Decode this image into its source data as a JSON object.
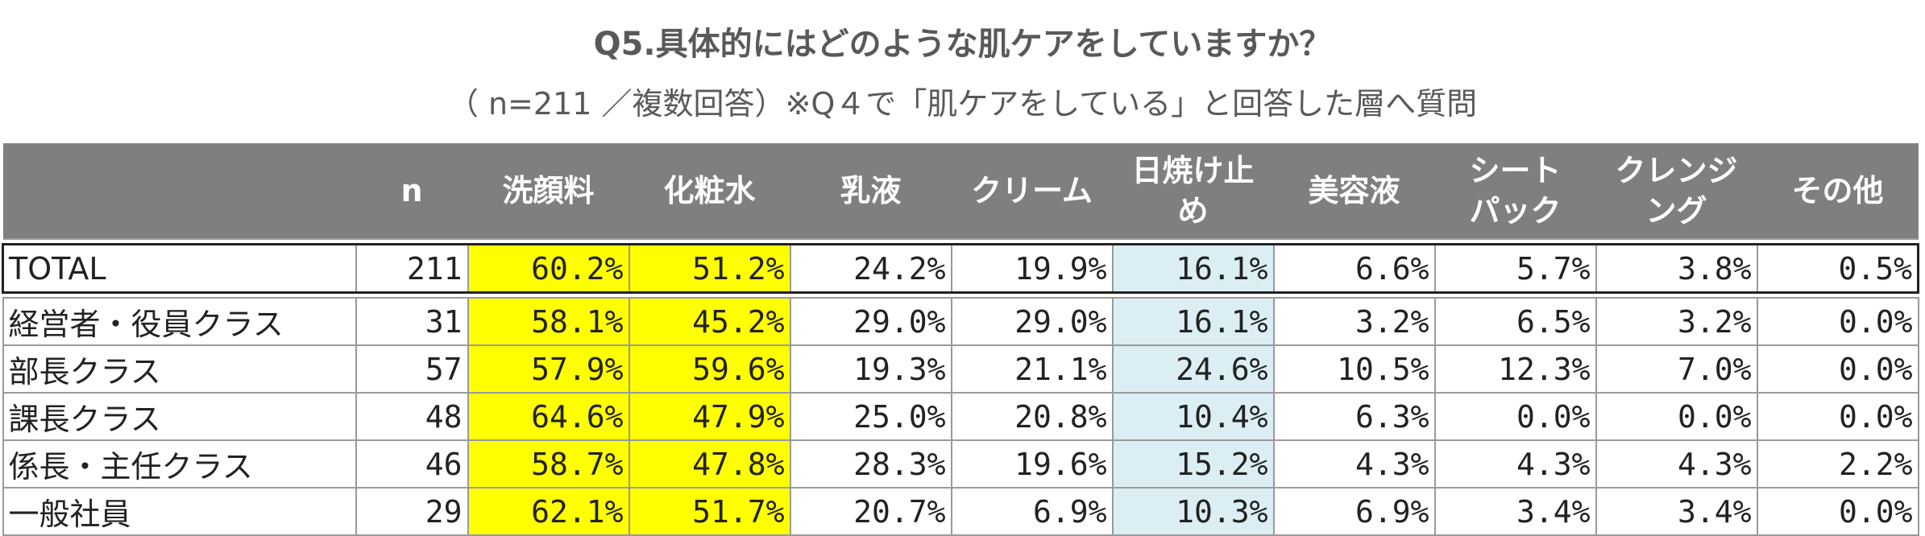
{
  "title": "Q5.具体的にはどのような肌ケアをしていますか？",
  "subtitle": "（ n=211 ／複数回答）※Q４で「肌ケアをしている」と回答した層へ質問",
  "colors": {
    "header_bg": "#7f7f7f",
    "highlight_yellow": "#ffff00",
    "highlight_blue": "#daeef3"
  },
  "chart_data": {
    "type": "table",
    "columns": [
      "n",
      "洗顔料",
      "化粧水",
      "乳液",
      "クリーム",
      "日焼け止め",
      "美容液",
      "シートパック",
      "クレンジング",
      "その他"
    ],
    "header": {
      "n": "n",
      "c1": "洗顔料",
      "c2": "化粧水",
      "c3": "乳液",
      "c4": "クリーム",
      "c5a": "日焼け止",
      "c5b": "め",
      "c6": "美容液",
      "c7a": "シート",
      "c7b": "パック",
      "c8a": "クレンジ",
      "c8b": "ング",
      "c9": "その他"
    },
    "rows": [
      {
        "label": "TOTAL",
        "n": "211",
        "values": [
          "60.2%",
          "51.2%",
          "24.2%",
          "19.9%",
          "16.1%",
          "6.6%",
          "5.7%",
          "3.8%",
          "0.5%"
        ]
      },
      {
        "label": "経営者・役員クラス",
        "n": "31",
        "values": [
          "58.1%",
          "45.2%",
          "29.0%",
          "29.0%",
          "16.1%",
          "3.2%",
          "6.5%",
          "3.2%",
          "0.0%"
        ]
      },
      {
        "label": "部長クラス",
        "n": "57",
        "values": [
          "57.9%",
          "59.6%",
          "19.3%",
          "21.1%",
          "24.6%",
          "10.5%",
          "12.3%",
          "7.0%",
          "0.0%"
        ]
      },
      {
        "label": "課長クラス",
        "n": "48",
        "values": [
          "64.6%",
          "47.9%",
          "25.0%",
          "20.8%",
          "10.4%",
          "6.3%",
          "0.0%",
          "0.0%",
          "0.0%"
        ]
      },
      {
        "label": "係長・主任クラス",
        "n": "46",
        "values": [
          "58.7%",
          "47.8%",
          "28.3%",
          "19.6%",
          "15.2%",
          "4.3%",
          "4.3%",
          "4.3%",
          "2.2%"
        ]
      },
      {
        "label": "一般社員",
        "n": "29",
        "values": [
          "62.1%",
          "51.7%",
          "20.7%",
          "6.9%",
          "10.3%",
          "6.9%",
          "3.4%",
          "3.4%",
          "0.0%"
        ]
      }
    ]
  }
}
